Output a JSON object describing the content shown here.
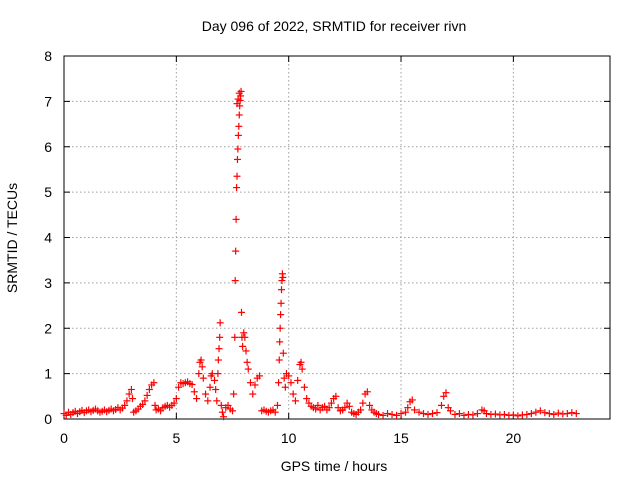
{
  "chart_data": {
    "type": "scatter",
    "title": "Day 096 of 2022, SRMTID for receiver rivn",
    "xlabel": "GPS time / hours",
    "ylabel": "SRMTID / TECUs",
    "xlim": [
      0,
      24.3
    ],
    "ylim": [
      0,
      8
    ],
    "xticks": [
      0,
      5,
      10,
      15,
      20
    ],
    "yticks": [
      0,
      1,
      2,
      3,
      4,
      5,
      6,
      7,
      8
    ],
    "grid": true,
    "legend": "none",
    "marker": "plus",
    "series_color": "#ff0000",
    "series": [
      {
        "points": [
          [
            0.0,
            0.12
          ],
          [
            0.1,
            0.08
          ],
          [
            0.2,
            0.15
          ],
          [
            0.3,
            0.1
          ],
          [
            0.4,
            0.14
          ],
          [
            0.5,
            0.17
          ],
          [
            0.6,
            0.12
          ],
          [
            0.7,
            0.16
          ],
          [
            0.8,
            0.19
          ],
          [
            0.9,
            0.14
          ],
          [
            1.0,
            0.18
          ],
          [
            1.1,
            0.2
          ],
          [
            1.2,
            0.16
          ],
          [
            1.3,
            0.19
          ],
          [
            1.4,
            0.22
          ],
          [
            1.5,
            0.18
          ],
          [
            1.6,
            0.15
          ],
          [
            1.7,
            0.17
          ],
          [
            1.8,
            0.2
          ],
          [
            1.9,
            0.16
          ],
          [
            2.0,
            0.19
          ],
          [
            2.1,
            0.22
          ],
          [
            2.2,
            0.18
          ],
          [
            2.3,
            0.21
          ],
          [
            2.4,
            0.25
          ],
          [
            2.5,
            0.2
          ],
          [
            2.6,
            0.24
          ],
          [
            2.7,
            0.3
          ],
          [
            2.8,
            0.4
          ],
          [
            2.9,
            0.55
          ],
          [
            3.0,
            0.65
          ],
          [
            3.05,
            0.45
          ],
          [
            3.1,
            0.15
          ],
          [
            3.2,
            0.18
          ],
          [
            3.3,
            0.22
          ],
          [
            3.4,
            0.28
          ],
          [
            3.5,
            0.32
          ],
          [
            3.6,
            0.4
          ],
          [
            3.7,
            0.52
          ],
          [
            3.8,
            0.65
          ],
          [
            3.9,
            0.75
          ],
          [
            4.0,
            0.8
          ],
          [
            4.05,
            0.3
          ],
          [
            4.1,
            0.2
          ],
          [
            4.2,
            0.22
          ],
          [
            4.3,
            0.18
          ],
          [
            4.4,
            0.25
          ],
          [
            4.5,
            0.28
          ],
          [
            4.6,
            0.3
          ],
          [
            4.7,
            0.26
          ],
          [
            4.8,
            0.3
          ],
          [
            4.9,
            0.35
          ],
          [
            5.0,
            0.45
          ],
          [
            5.1,
            0.7
          ],
          [
            5.2,
            0.8
          ],
          [
            5.3,
            0.78
          ],
          [
            5.4,
            0.8
          ],
          [
            5.5,
            0.82
          ],
          [
            5.6,
            0.78
          ],
          [
            5.7,
            0.76
          ],
          [
            5.8,
            0.6
          ],
          [
            5.9,
            0.45
          ],
          [
            6.0,
            1.0
          ],
          [
            6.05,
            1.25
          ],
          [
            6.1,
            1.3
          ],
          [
            6.15,
            1.15
          ],
          [
            6.2,
            0.9
          ],
          [
            6.3,
            0.55
          ],
          [
            6.4,
            0.4
          ],
          [
            6.5,
            0.7
          ],
          [
            6.55,
            0.95
          ],
          [
            6.6,
            1.0
          ],
          [
            6.7,
            0.85
          ],
          [
            6.75,
            0.65
          ],
          [
            6.8,
            0.4
          ],
          [
            6.85,
            1.0
          ],
          [
            6.87,
            1.3
          ],
          [
            6.9,
            1.55
          ],
          [
            6.93,
            1.8
          ],
          [
            6.95,
            2.12
          ],
          [
            7.0,
            0.3
          ],
          [
            7.05,
            0.15
          ],
          [
            7.1,
            0.05
          ],
          [
            7.2,
            0.25
          ],
          [
            7.3,
            0.3
          ],
          [
            7.4,
            0.22
          ],
          [
            7.5,
            0.18
          ],
          [
            7.55,
            0.55
          ],
          [
            7.6,
            1.8
          ],
          [
            7.62,
            3.05
          ],
          [
            7.64,
            3.7
          ],
          [
            7.66,
            4.4
          ],
          [
            7.68,
            5.1
          ],
          [
            7.7,
            5.35
          ],
          [
            7.72,
            5.72
          ],
          [
            7.74,
            5.95
          ],
          [
            7.76,
            6.25
          ],
          [
            7.78,
            6.45
          ],
          [
            7.8,
            6.7
          ],
          [
            7.82,
            6.9
          ],
          [
            7.84,
            7.02
          ],
          [
            7.86,
            7.12
          ],
          [
            7.88,
            7.22
          ],
          [
            7.8,
            7.18
          ],
          [
            7.75,
            7.05
          ],
          [
            7.7,
            6.95
          ],
          [
            7.9,
            2.35
          ],
          [
            7.92,
            1.8
          ],
          [
            7.95,
            1.6
          ],
          [
            8.0,
            1.9
          ],
          [
            8.05,
            1.8
          ],
          [
            8.1,
            1.5
          ],
          [
            8.15,
            1.25
          ],
          [
            8.2,
            1.1
          ],
          [
            8.3,
            0.8
          ],
          [
            8.4,
            0.55
          ],
          [
            8.5,
            0.75
          ],
          [
            8.6,
            0.9
          ],
          [
            8.7,
            0.95
          ],
          [
            8.8,
            0.18
          ],
          [
            8.9,
            0.2
          ],
          [
            9.0,
            0.17
          ],
          [
            9.1,
            0.15
          ],
          [
            9.2,
            0.18
          ],
          [
            9.3,
            0.2
          ],
          [
            9.4,
            0.15
          ],
          [
            9.5,
            0.3
          ],
          [
            9.55,
            0.8
          ],
          [
            9.58,
            1.3
          ],
          [
            9.6,
            1.7
          ],
          [
            9.62,
            2.0
          ],
          [
            9.64,
            2.3
          ],
          [
            9.66,
            2.55
          ],
          [
            9.68,
            2.85
          ],
          [
            9.7,
            3.05
          ],
          [
            9.72,
            3.2
          ],
          [
            9.74,
            3.12
          ],
          [
            9.76,
            1.45
          ],
          [
            9.8,
            0.9
          ],
          [
            9.85,
            0.7
          ],
          [
            9.9,
            1.0
          ],
          [
            10.0,
            0.95
          ],
          [
            10.1,
            0.8
          ],
          [
            10.2,
            0.55
          ],
          [
            10.3,
            0.4
          ],
          [
            10.4,
            0.85
          ],
          [
            10.5,
            1.2
          ],
          [
            10.55,
            1.25
          ],
          [
            10.6,
            1.1
          ],
          [
            10.7,
            0.7
          ],
          [
            10.8,
            0.45
          ],
          [
            10.9,
            0.35
          ],
          [
            11.0,
            0.28
          ],
          [
            11.1,
            0.25
          ],
          [
            11.2,
            0.22
          ],
          [
            11.3,
            0.3
          ],
          [
            11.4,
            0.2
          ],
          [
            11.5,
            0.25
          ],
          [
            11.6,
            0.28
          ],
          [
            11.7,
            0.2
          ],
          [
            11.8,
            0.25
          ],
          [
            11.9,
            0.35
          ],
          [
            12.0,
            0.45
          ],
          [
            12.1,
            0.5
          ],
          [
            12.2,
            0.25
          ],
          [
            12.3,
            0.18
          ],
          [
            12.4,
            0.2
          ],
          [
            12.5,
            0.25
          ],
          [
            12.6,
            0.35
          ],
          [
            12.7,
            0.28
          ],
          [
            12.8,
            0.15
          ],
          [
            12.9,
            0.12
          ],
          [
            13.0,
            0.1
          ],
          [
            13.1,
            0.15
          ],
          [
            13.2,
            0.2
          ],
          [
            13.3,
            0.35
          ],
          [
            13.4,
            0.55
          ],
          [
            13.5,
            0.6
          ],
          [
            13.6,
            0.3
          ],
          [
            13.7,
            0.2
          ],
          [
            13.8,
            0.15
          ],
          [
            13.9,
            0.12
          ],
          [
            14.0,
            0.1
          ],
          [
            14.2,
            0.08
          ],
          [
            14.4,
            0.12
          ],
          [
            14.6,
            0.1
          ],
          [
            14.8,
            0.08
          ],
          [
            15.0,
            0.12
          ],
          [
            15.2,
            0.15
          ],
          [
            15.3,
            0.25
          ],
          [
            15.4,
            0.38
          ],
          [
            15.5,
            0.42
          ],
          [
            15.6,
            0.2
          ],
          [
            15.8,
            0.15
          ],
          [
            16.0,
            0.12
          ],
          [
            16.2,
            0.1
          ],
          [
            16.4,
            0.12
          ],
          [
            16.6,
            0.14
          ],
          [
            16.8,
            0.3
          ],
          [
            16.9,
            0.5
          ],
          [
            17.0,
            0.58
          ],
          [
            17.1,
            0.25
          ],
          [
            17.2,
            0.18
          ],
          [
            17.4,
            0.1
          ],
          [
            17.6,
            0.12
          ],
          [
            17.8,
            0.08
          ],
          [
            18.0,
            0.1
          ],
          [
            18.2,
            0.09
          ],
          [
            18.4,
            0.12
          ],
          [
            18.6,
            0.2
          ],
          [
            18.7,
            0.18
          ],
          [
            18.8,
            0.12
          ],
          [
            19.0,
            0.1
          ],
          [
            19.2,
            0.11
          ],
          [
            19.4,
            0.09
          ],
          [
            19.6,
            0.1
          ],
          [
            19.8,
            0.08
          ],
          [
            20.0,
            0.09
          ],
          [
            20.2,
            0.07
          ],
          [
            20.4,
            0.09
          ],
          [
            20.6,
            0.1
          ],
          [
            20.8,
            0.12
          ],
          [
            21.0,
            0.15
          ],
          [
            21.2,
            0.18
          ],
          [
            21.4,
            0.14
          ],
          [
            21.6,
            0.12
          ],
          [
            21.8,
            0.1
          ],
          [
            22.0,
            0.13
          ],
          [
            22.2,
            0.11
          ],
          [
            22.4,
            0.12
          ],
          [
            22.6,
            0.14
          ],
          [
            22.8,
            0.12
          ]
        ]
      }
    ]
  }
}
